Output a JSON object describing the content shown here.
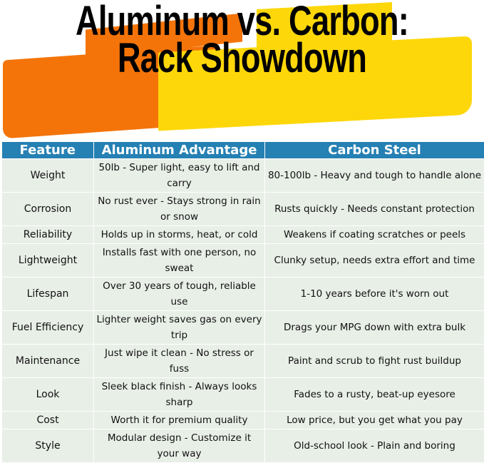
{
  "title": "Aluminum vs. Carbon: Rack Showdown",
  "colors": {
    "header_bg": "#2580b3",
    "row_bg": "#e8efe7",
    "orange": "#f47409",
    "yellow": "#fdd70a"
  },
  "table": {
    "headers": [
      "Feature",
      "Aluminum Advantage",
      "Carbon Steel"
    ],
    "rows": [
      [
        "Weight",
        "50lb - Super light, easy to lift and carry",
        "80-100lb - Heavy and tough to handle alone"
      ],
      [
        "Corrosion",
        "No rust ever - Stays strong in rain or snow",
        "Rusts quickly - Needs constant protection"
      ],
      [
        "Reliability",
        "Holds up in storms, heat, or cold",
        "Weakens if coating scratches or peels"
      ],
      [
        "Lightweight",
        "Installs fast with one person, no sweat",
        "Clunky setup, needs extra effort and time"
      ],
      [
        "Lifespan",
        "Over 30 years of tough, reliable use",
        "1-10 years before it's worn out"
      ],
      [
        "Fuel Efficiency",
        "Lighter weight saves gas on every trip",
        "Drags your MPG down with extra bulk"
      ],
      [
        "Maintenance",
        "Just wipe it clean - No stress or fuss",
        "Paint and scrub to fight rust buildup"
      ],
      [
        "Look",
        "Sleek black finish - Always looks sharp",
        "Fades to a rusty, beat-up eyesore"
      ],
      [
        "Cost",
        "Worth it for premium quality",
        "Low price, but you get what you pay"
      ],
      [
        "Style",
        "Modular design - Customize it your way",
        "Old-school look - Plain and boring"
      ]
    ]
  }
}
